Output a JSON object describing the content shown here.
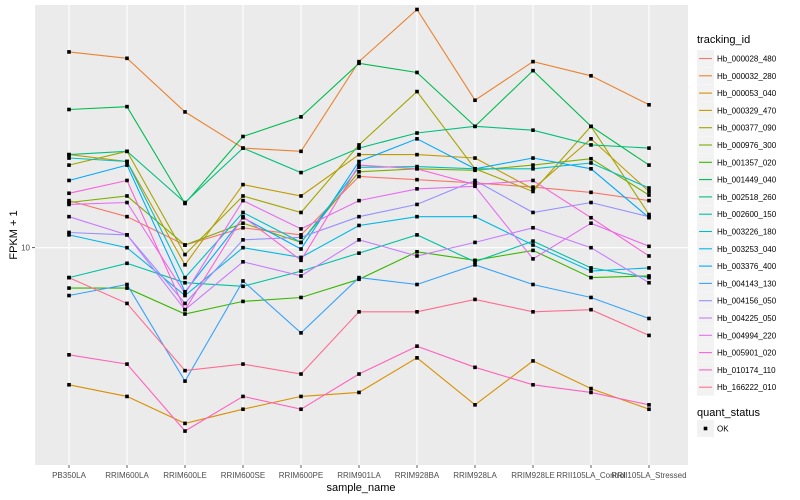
{
  "chart_data": {
    "type": "line",
    "title": "",
    "xlabel": "sample_name",
    "ylabel": "FPKM + 1",
    "y_scale": "log10",
    "y_ticks": [
      {
        "value": 10,
        "label": "10"
      }
    ],
    "ylim": [
      1.98,
      61
    ],
    "grid": true,
    "legend_position": "right",
    "categories": [
      "PB350LA",
      "RRIM600LA",
      "RRIM600LE",
      "RRIM600SE",
      "RRIM600PE",
      "RRIM901LA",
      "RRIM928BA",
      "RRIM928LA",
      "RRIM928LE",
      "RRII105LA_Control",
      "RRII105LA_Stressed"
    ],
    "legend": {
      "color_title": "tracking_id",
      "shape_title": "quant_status",
      "shape_entries": [
        "OK"
      ]
    },
    "series": [
      {
        "name": "Hb_000028_480",
        "color": "#F8766D",
        "values": [
          14.2,
          12.6,
          10.2,
          11.6,
          11.0,
          17.0,
          16.6,
          16.2,
          15.7,
          15.1,
          14.2
        ]
      },
      {
        "name": "Hb_000032_280",
        "color": "#EA8331",
        "values": [
          43.0,
          41.0,
          27.5,
          21.0,
          20.5,
          40.0,
          59.0,
          30.0,
          40.0,
          36.0,
          29.0
        ]
      },
      {
        "name": "Hb_000053_040",
        "color": "#D89000",
        "values": [
          3.6,
          3.3,
          2.7,
          3.0,
          3.3,
          3.4,
          4.4,
          3.1,
          4.3,
          3.5,
          3.0
        ]
      },
      {
        "name": "Hb_000329_470",
        "color": "#C09B00",
        "values": [
          20.0,
          19.0,
          8.8,
          16.0,
          14.7,
          20.0,
          20.0,
          19.5,
          15.5,
          22.5,
          15.2
        ]
      },
      {
        "name": "Hb_000377_090",
        "color": "#A3A500",
        "values": [
          18.5,
          20.5,
          9.5,
          14.7,
          13.0,
          21.5,
          32.0,
          18.0,
          15.2,
          24.7,
          12.8
        ]
      },
      {
        "name": "Hb_000976_300",
        "color": "#7CAE00",
        "values": [
          14.0,
          14.7,
          10.2,
          12.0,
          10.4,
          17.6,
          18.0,
          17.8,
          18.5,
          19.4,
          14.8
        ]
      },
      {
        "name": "Hb_001357_020",
        "color": "#39B600",
        "values": [
          7.4,
          7.4,
          6.1,
          6.7,
          6.9,
          7.9,
          9.7,
          9.1,
          9.8,
          8.0,
          8.1
        ]
      },
      {
        "name": "Hb_001449_040",
        "color": "#00BB4E",
        "values": [
          28.0,
          28.6,
          13.9,
          22.9,
          26.5,
          39.5,
          36.9,
          24.7,
          37.4,
          24.7,
          18.5
        ]
      },
      {
        "name": "Hb_002518_260",
        "color": "#00BF7D",
        "values": [
          20.0,
          20.5,
          14.0,
          21.0,
          17.5,
          21.0,
          23.5,
          24.7,
          24.0,
          21.5,
          21.0
        ]
      },
      {
        "name": "Hb_002600_150",
        "color": "#00C1A3",
        "values": [
          8.0,
          8.9,
          7.7,
          7.5,
          8.4,
          9.6,
          11.0,
          9.0,
          10.5,
          8.6,
          8.0
        ]
      },
      {
        "name": "Hb_003226_180",
        "color": "#00BFC4",
        "values": [
          19.5,
          19.0,
          8.0,
          13.0,
          10.4,
          18.2,
          18.3,
          18.0,
          18.0,
          18.8,
          15.6
        ]
      },
      {
        "name": "Hb_003253_040",
        "color": "#00B8E7",
        "values": [
          11.0,
          10.0,
          7.0,
          10.0,
          9.3,
          11.8,
          12.6,
          12.6,
          10.2,
          8.4,
          8.6
        ]
      },
      {
        "name": "Hb_003376_400",
        "color": "#00A9FF",
        "values": [
          16.5,
          18.5,
          7.2,
          12.5,
          9.9,
          19.0,
          22.5,
          18.0,
          19.5,
          18.0,
          12.5
        ]
      },
      {
        "name": "Hb_004143_130",
        "color": "#35A2FF",
        "values": [
          7.0,
          7.6,
          3.7,
          7.8,
          5.3,
          8.0,
          7.6,
          8.8,
          7.6,
          6.9,
          5.9
        ]
      },
      {
        "name": "Hb_004156_050",
        "color": "#9590FF",
        "values": [
          11.2,
          11.0,
          6.6,
          10.6,
          10.8,
          12.6,
          13.8,
          16.5,
          13.0,
          14.0,
          12.6
        ]
      },
      {
        "name": "Hb_004225_050",
        "color": "#C77CFF",
        "values": [
          12.6,
          11.0,
          6.3,
          9.0,
          8.1,
          10.6,
          9.4,
          10.4,
          11.6,
          10.0,
          7.7
        ]
      },
      {
        "name": "Hb_004994_220",
        "color": "#E76BF3",
        "values": [
          13.8,
          14.0,
          7.1,
          14.2,
          11.5,
          14.2,
          15.5,
          15.8,
          9.2,
          12.0,
          10.1
        ]
      },
      {
        "name": "Hb_005901_020",
        "color": "#FA62DB",
        "values": [
          15.0,
          16.5,
          6.3,
          12.6,
          9.1,
          18.5,
          18.0,
          16.0,
          16.5,
          12.5,
          9.4
        ]
      },
      {
        "name": "Hb_010174_110",
        "color": "#FF62BC",
        "values": [
          4.5,
          4.2,
          2.55,
          3.3,
          3.0,
          3.9,
          4.8,
          4.1,
          3.6,
          3.4,
          3.1
        ]
      },
      {
        "name": "Hb_166222_010",
        "color": "#FF6C91",
        "values": [
          8.0,
          6.6,
          4.0,
          4.2,
          3.9,
          6.2,
          6.2,
          6.8,
          6.2,
          6.3,
          5.2
        ]
      }
    ]
  }
}
